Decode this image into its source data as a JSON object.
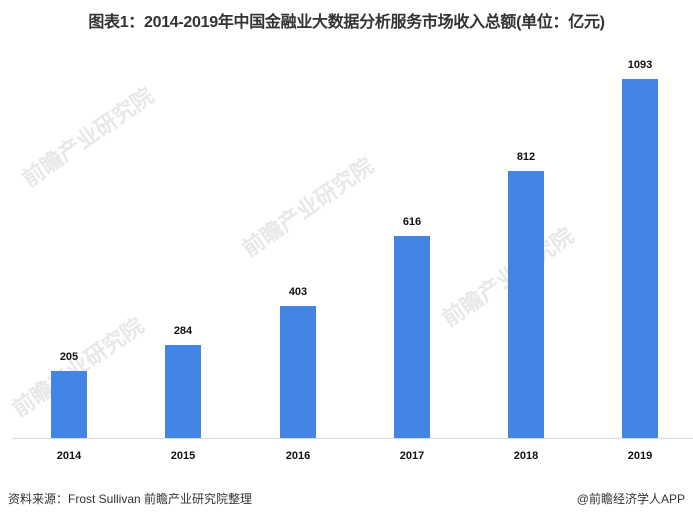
{
  "title": "图表1：2014-2019年中国金融业大数据分析服务市场收入总额(单位：亿元)",
  "source": "资料来源：Frost Sullivan 前瞻产业研究院整理",
  "brand": "@前瞻经济学人APP",
  "watermark": "前瞻产业研究院",
  "bar_color": "#4285e4",
  "chart_data": {
    "type": "bar",
    "title": "图表1：2014-2019年中国金融业大数据分析服务市场收入总额(单位：亿元)",
    "categories": [
      "2014",
      "2015",
      "2016",
      "2017",
      "2018",
      "2019"
    ],
    "values": [
      205,
      284,
      403,
      616,
      812,
      1093
    ],
    "xlabel": "",
    "ylabel": "亿元",
    "ylim": [
      0,
      1200
    ],
    "grid": false,
    "legend": "none"
  },
  "bars": [
    {
      "year": "2014",
      "value": "205"
    },
    {
      "year": "2015",
      "value": "284"
    },
    {
      "year": "2016",
      "value": "403"
    },
    {
      "year": "2017",
      "value": "616"
    },
    {
      "year": "2018",
      "value": "812"
    },
    {
      "year": "2019",
      "value": "1093"
    }
  ]
}
